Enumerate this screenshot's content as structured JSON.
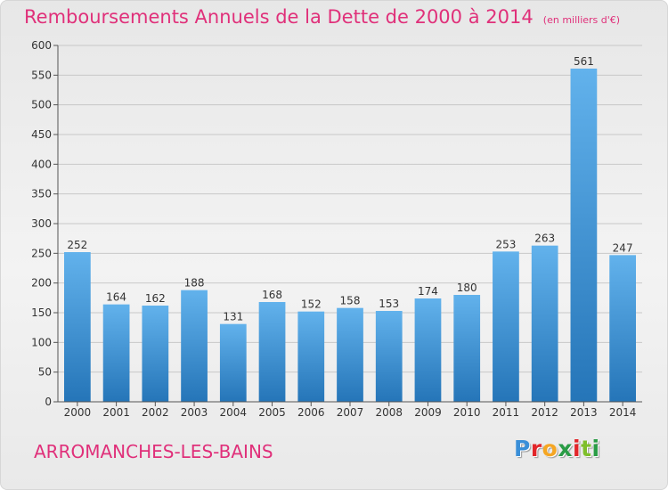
{
  "title": "Remboursements Annuels de la Dette de 2000 à 2014",
  "unit_note": "(en milliers d'€)",
  "commune": "ARROMANCHES-LES-BAINS",
  "brand": {
    "logo_text": "Proxiti",
    "letter_colors": [
      "#3a8fd8",
      "#e2262a",
      "#f5a623",
      "#2a9c46",
      "#e2262a",
      "#7fbf2b",
      "#2a9c46"
    ]
  },
  "colors": {
    "title": "#e0307a",
    "bar_top": "#62b2ec",
    "bar_bottom": "#2575b8",
    "grid": "#c8c8c8"
  },
  "chart_data": {
    "type": "bar",
    "title": "Remboursements Annuels de la Dette de 2000 à 2014",
    "categories": [
      "2000",
      "2001",
      "2002",
      "2003",
      "2004",
      "2005",
      "2006",
      "2007",
      "2008",
      "2009",
      "2010",
      "2011",
      "2012",
      "2013",
      "2014"
    ],
    "values": [
      252,
      164,
      162,
      188,
      131,
      168,
      152,
      158,
      153,
      174,
      180,
      253,
      263,
      561,
      247
    ],
    "yticks": [
      0,
      50,
      100,
      150,
      200,
      250,
      300,
      350,
      400,
      450,
      500,
      550,
      600
    ],
    "ylim": [
      0,
      600
    ],
    "grid": true,
    "data_labels": true
  }
}
